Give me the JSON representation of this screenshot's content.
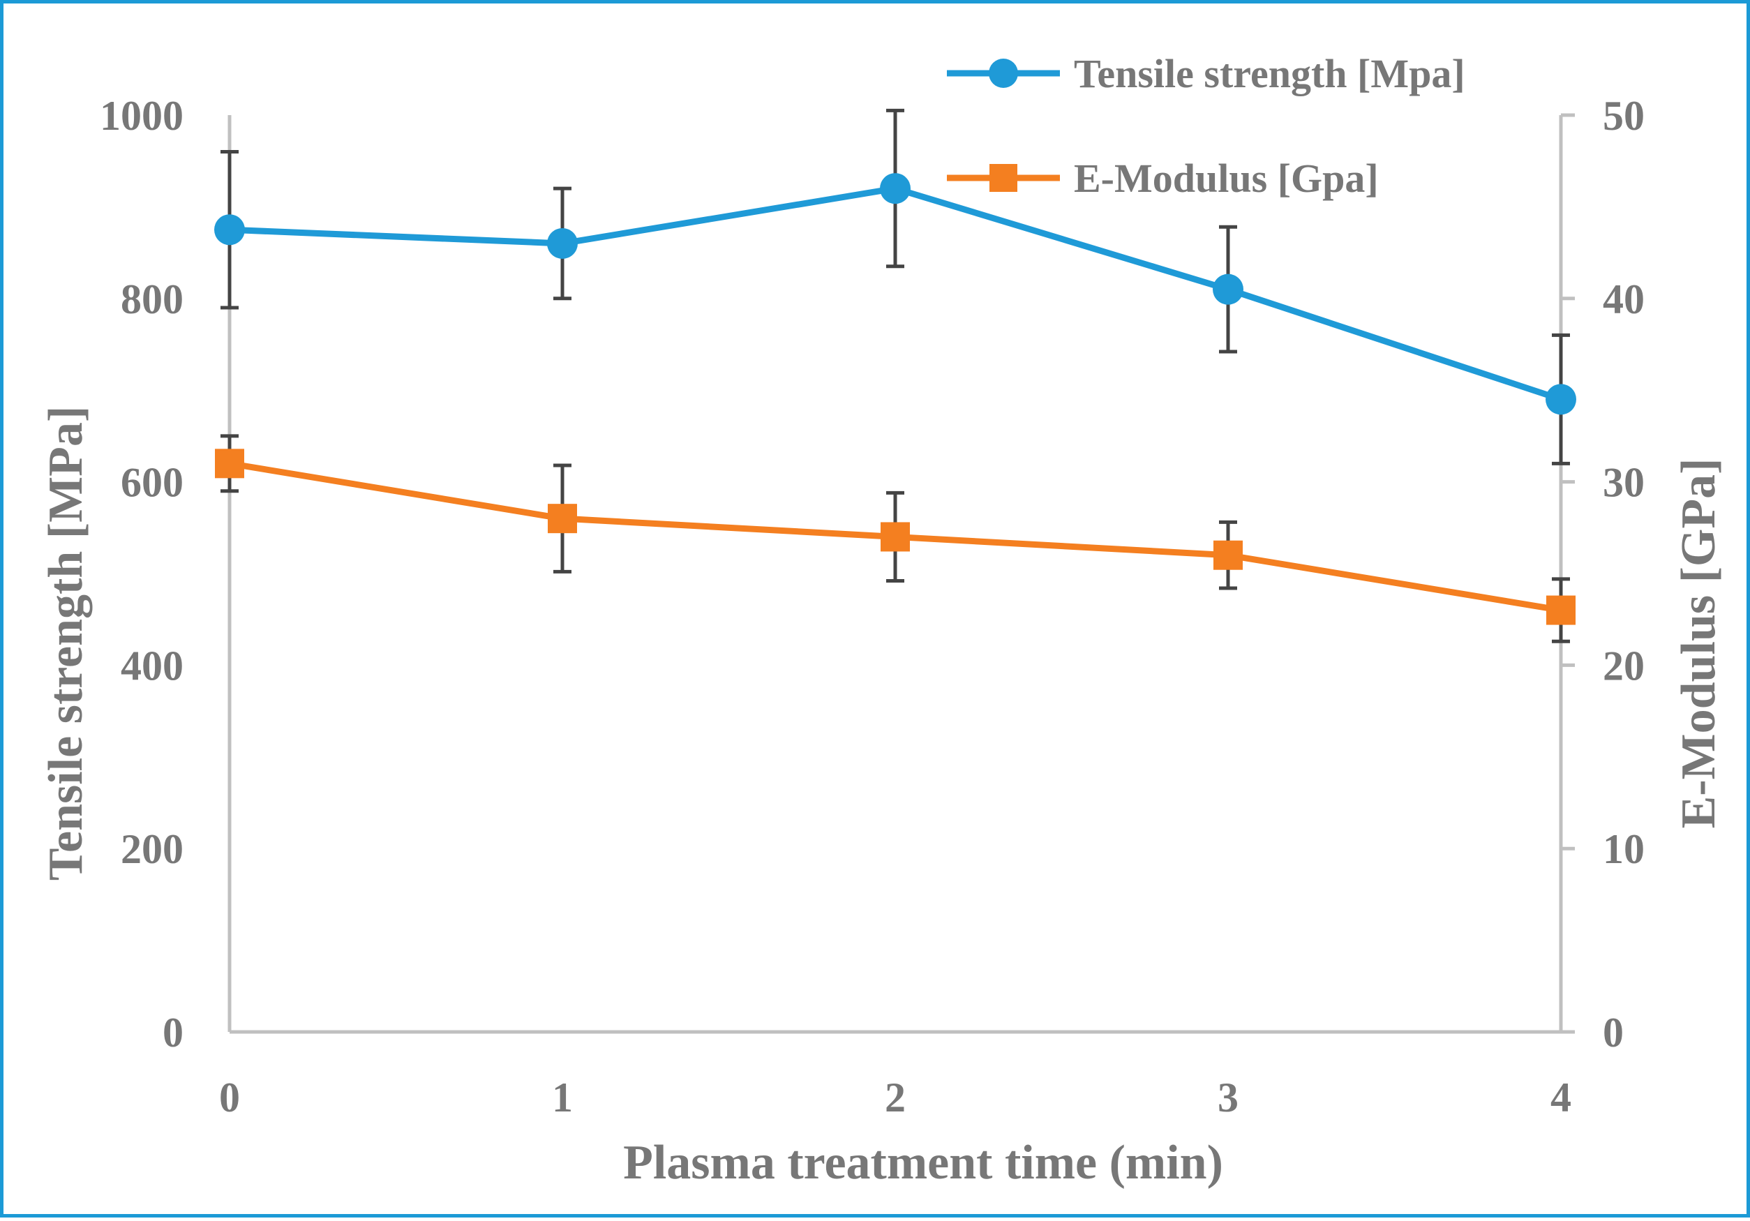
{
  "chart_data": {
    "type": "line",
    "x": [
      0,
      1,
      2,
      3,
      4
    ],
    "x_tick_labels": [
      "0",
      "1",
      "2",
      "3",
      "4"
    ],
    "xlabel": "Plasma treatment time (min)",
    "ylabel_left": "Tensile strength [MPa]",
    "ylabel_right": "E-Modulus [GPa]",
    "ylim_left": [
      0,
      1000
    ],
    "ylim_right": [
      0,
      50
    ],
    "y_ticks_left": [
      0,
      200,
      400,
      600,
      800,
      1000
    ],
    "y_ticks_right": [
      0,
      10,
      20,
      30,
      40,
      50
    ],
    "grid": false,
    "legend_position": "top-right",
    "series": [
      {
        "name": "Tensile strength [Mpa]",
        "axis": "left",
        "marker": "circle",
        "color": "#1f9ad7",
        "values": [
          875,
          860,
          920,
          810,
          690
        ],
        "error": [
          85,
          60,
          85,
          68,
          70
        ]
      },
      {
        "name": "E-Modulus [Gpa]",
        "axis": "right",
        "marker": "square",
        "color": "#f47f20",
        "values": [
          31,
          28,
          27,
          26,
          23
        ],
        "error": [
          1.5,
          2.9,
          2.4,
          1.8,
          1.7
        ]
      }
    ],
    "errorbar_color": "#444444",
    "axis_color": "#c0c0c0"
  }
}
